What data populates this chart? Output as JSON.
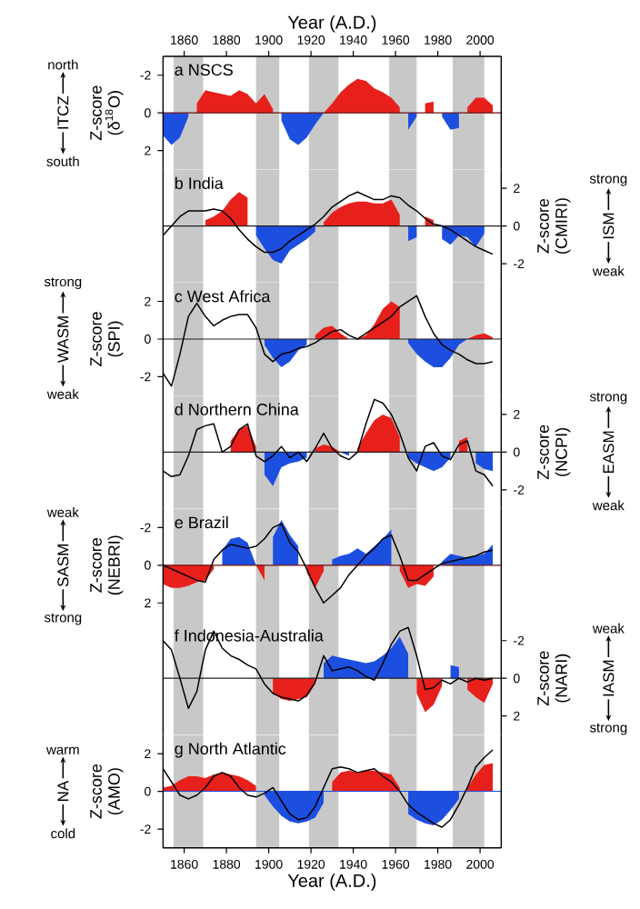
{
  "chart_data": [
    {
      "type": "area",
      "title": "a NSCS",
      "x2label": "Year (A.D.)",
      "ylabel": "Z-score (δ$^{18}$O)",
      "annotations": [
        "north",
        "ITCZ",
        "south"
      ],
      "xlim": [
        1850,
        2010
      ],
      "x2lim": [
        1850,
        2010
      ],
      "x2ticks": [
        1860,
        1880,
        1900,
        1920,
        1940,
        1960,
        1980,
        2000
      ],
      "ylim": [
        3,
        -3
      ],
      "yticks": [
        -2,
        0,
        2
      ],
      "x": [
        1850,
        1854,
        1858,
        1862,
        1866,
        1870,
        1874,
        1878,
        1882,
        1886,
        1890,
        1894,
        1898,
        1902,
        1906,
        1910,
        1914,
        1918,
        1922,
        1926,
        1930,
        1934,
        1938,
        1942,
        1946,
        1950,
        1954,
        1958,
        1962,
        1966,
        1970,
        1974,
        1978,
        1982,
        1986,
        1990,
        1994,
        1998,
        2002,
        2006
      ],
      "bands": [
        {
          "axis": "x",
          "from": 1855,
          "to": 1869,
          "color": "#c8c8c8"
        },
        {
          "axis": "x",
          "from": 1894,
          "to": 1905,
          "color": "#c8c8c8"
        },
        {
          "axis": "x",
          "from": 1919,
          "to": 1933,
          "color": "#c8c8c8"
        },
        {
          "axis": "x",
          "from": 1957,
          "to": 1970,
          "color": "#c8c8c8"
        },
        {
          "axis": "x",
          "from": 1987,
          "to": 2002,
          "color": "#c8c8c8"
        }
      ],
      "ref_lines": [
        {
          "axis": "y",
          "value": 0,
          "color": "#6b1010"
        }
      ],
      "series": [
        {
          "type": "area",
          "color": "#e8201c",
          "values": [
            null,
            null,
            null,
            null,
            -0.5,
            -1.2,
            -1.1,
            -1.0,
            -0.9,
            -1.2,
            -1.0,
            -0.5,
            -1.0,
            -0.2,
            null,
            null,
            null,
            null,
            null,
            0.0,
            -0.5,
            -1.1,
            -1.5,
            -1.8,
            -1.7,
            -1.3,
            -1.1,
            -0.8,
            -0.3,
            null,
            null,
            -0.5,
            -0.6,
            null,
            null,
            null,
            -0.3,
            -0.8,
            -0.8,
            -0.4
          ]
        },
        {
          "type": "area",
          "color": "#1c4fe0",
          "values": [
            1.2,
            1.7,
            1.3,
            0.2,
            null,
            null,
            null,
            null,
            null,
            null,
            null,
            null,
            null,
            null,
            0.4,
            1.4,
            1.7,
            1.3,
            0.6,
            0.0,
            null,
            null,
            null,
            null,
            null,
            null,
            null,
            null,
            null,
            0.9,
            0.2,
            null,
            null,
            0.2,
            0.9,
            0.8,
            null,
            null,
            null,
            null
          ]
        }
      ]
    },
    {
      "type": "area",
      "title": "b India",
      "y2label": "Z-score (CMIRI)",
      "annotations": [
        "strong",
        "ISM",
        "weak"
      ],
      "xlim": [
        1850,
        2010
      ],
      "y2lim": [
        -3,
        3
      ],
      "y2ticks": [
        -2,
        0,
        2
      ],
      "x": [
        1850,
        1854,
        1858,
        1862,
        1866,
        1870,
        1874,
        1878,
        1882,
        1886,
        1890,
        1894,
        1898,
        1902,
        1906,
        1910,
        1914,
        1918,
        1922,
        1926,
        1930,
        1934,
        1938,
        1942,
        1946,
        1950,
        1954,
        1958,
        1962,
        1966,
        1970,
        1974,
        1978,
        1982,
        1986,
        1990,
        1994,
        1998,
        2002,
        2006
      ],
      "bands": [
        {
          "axis": "x",
          "from": 1855,
          "to": 1869,
          "color": "#c8c8c8"
        },
        {
          "axis": "x",
          "from": 1894,
          "to": 1905,
          "color": "#c8c8c8"
        },
        {
          "axis": "x",
          "from": 1919,
          "to": 1933,
          "color": "#c8c8c8"
        },
        {
          "axis": "x",
          "from": 1957,
          "to": 1970,
          "color": "#c8c8c8"
        },
        {
          "axis": "x",
          "from": 1987,
          "to": 2002,
          "color": "#c8c8c8"
        }
      ],
      "ref_lines": [
        {
          "axis": "y2",
          "value": 0,
          "color": "#202020"
        }
      ],
      "series": [
        {
          "type": "area",
          "axis": "y2",
          "color": "#e8201c",
          "values": [
            null,
            null,
            null,
            null,
            null,
            0.3,
            0.5,
            0.8,
            1.4,
            1.8,
            1.5,
            null,
            null,
            null,
            null,
            null,
            null,
            null,
            null,
            0.2,
            0.7,
            1.0,
            1.2,
            1.3,
            1.3,
            1.2,
            1.2,
            1.4,
            0.6,
            null,
            null,
            0.5,
            0.3,
            null,
            null,
            null,
            null,
            null,
            null,
            0.2
          ]
        },
        {
          "type": "area",
          "axis": "y2",
          "color": "#1c4fe0",
          "values": [
            null,
            null,
            null,
            null,
            null,
            null,
            null,
            null,
            null,
            null,
            null,
            -0.5,
            -1.2,
            -1.8,
            -2.0,
            -1.3,
            -1.0,
            -0.7,
            -0.3,
            null,
            null,
            null,
            null,
            null,
            null,
            null,
            null,
            null,
            null,
            -0.8,
            -0.6,
            null,
            null,
            -0.7,
            -1.0,
            -0.5,
            -0.6,
            -1.1,
            -0.4,
            null
          ]
        },
        {
          "type": "line",
          "axis": "y2",
          "color": "#000000",
          "values": [
            -0.5,
            0.0,
            0.5,
            0.8,
            0.8,
            0.8,
            0.9,
            0.8,
            0.4,
            -0.2,
            -0.7,
            -1.1,
            -1.4,
            -1.4,
            -1.2,
            -0.8,
            -0.5,
            -0.2,
            0.1,
            0.5,
            1.0,
            1.3,
            1.6,
            1.8,
            1.6,
            1.4,
            1.4,
            1.6,
            1.5,
            1.1,
            0.8,
            0.4,
            0.1,
            0.0,
            -0.2,
            -0.5,
            -0.8,
            -1.1,
            -1.3,
            -1.5
          ]
        }
      ]
    },
    {
      "type": "area",
      "title": "c West Africa",
      "ylabel": "Z-score (SPI)",
      "annotations": [
        "strong",
        "WASM",
        "weak"
      ],
      "xlim": [
        1850,
        2010
      ],
      "ylim": [
        -3,
        3
      ],
      "yticks": [
        -2,
        0,
        2
      ],
      "x": [
        1850,
        1854,
        1858,
        1862,
        1866,
        1870,
        1874,
        1878,
        1882,
        1886,
        1890,
        1894,
        1898,
        1902,
        1906,
        1910,
        1914,
        1918,
        1922,
        1926,
        1930,
        1934,
        1938,
        1942,
        1946,
        1950,
        1954,
        1958,
        1962,
        1966,
        1970,
        1974,
        1978,
        1982,
        1986,
        1990,
        1994,
        1998,
        2002,
        2006
      ],
      "bands": [
        {
          "axis": "x",
          "from": 1855,
          "to": 1869,
          "color": "#c8c8c8"
        },
        {
          "axis": "x",
          "from": 1894,
          "to": 1905,
          "color": "#c8c8c8"
        },
        {
          "axis": "x",
          "from": 1919,
          "to": 1933,
          "color": "#c8c8c8"
        },
        {
          "axis": "x",
          "from": 1957,
          "to": 1970,
          "color": "#c8c8c8"
        },
        {
          "axis": "x",
          "from": 1987,
          "to": 2002,
          "color": "#c8c8c8"
        }
      ],
      "ref_lines": [
        {
          "axis": "y",
          "value": 0,
          "color": "#202020"
        }
      ],
      "series": [
        {
          "type": "area",
          "color": "#e8201c",
          "values": [
            null,
            null,
            null,
            null,
            null,
            null,
            null,
            null,
            null,
            null,
            null,
            null,
            null,
            null,
            null,
            null,
            null,
            null,
            0.2,
            0.6,
            0.7,
            0.3,
            0.0,
            0.0,
            0.2,
            0.8,
            1.6,
            2.0,
            1.7,
            null,
            null,
            null,
            null,
            null,
            null,
            null,
            0.0,
            0.2,
            0.3,
            0.1
          ]
        },
        {
          "type": "area",
          "color": "#1c4fe0",
          "values": [
            null,
            null,
            null,
            null,
            null,
            null,
            null,
            null,
            null,
            null,
            null,
            null,
            -0.3,
            -1.0,
            -1.5,
            -1.2,
            -0.6,
            -0.3,
            null,
            null,
            null,
            null,
            null,
            null,
            null,
            null,
            null,
            null,
            null,
            -0.2,
            -0.8,
            -1.2,
            -1.5,
            -1.5,
            -1.0,
            -0.3,
            0.0,
            null,
            null,
            null
          ]
        },
        {
          "type": "line",
          "color": "#000000",
          "values": [
            -1.8,
            -2.5,
            -0.8,
            1.2,
            1.9,
            1.2,
            0.7,
            1.0,
            1.2,
            1.3,
            1.3,
            0.6,
            -0.8,
            -1.2,
            -0.8,
            -0.7,
            -0.5,
            -0.4,
            -0.2,
            0.1,
            0.4,
            0.5,
            0.2,
            0.0,
            0.3,
            0.6,
            0.9,
            1.2,
            1.7,
            2.0,
            2.3,
            1.2,
            0.3,
            -0.3,
            -0.6,
            -0.8,
            -1.1,
            -1.3,
            -1.3,
            -1.2
          ]
        }
      ]
    },
    {
      "type": "area",
      "title": "d Northern China",
      "y2label": "Z-score (NCPI)",
      "annotations": [
        "strong",
        "EASM",
        "weak"
      ],
      "xlim": [
        1850,
        2010
      ],
      "y2lim": [
        -3,
        3
      ],
      "y2ticks": [
        -2,
        0,
        2
      ],
      "x": [
        1850,
        1854,
        1858,
        1862,
        1866,
        1870,
        1874,
        1878,
        1882,
        1886,
        1890,
        1894,
        1898,
        1902,
        1906,
        1910,
        1914,
        1918,
        1922,
        1926,
        1930,
        1934,
        1938,
        1942,
        1946,
        1950,
        1954,
        1958,
        1962,
        1966,
        1970,
        1974,
        1978,
        1982,
        1986,
        1990,
        1994,
        1998,
        2002,
        2006
      ],
      "bands": [
        {
          "axis": "x",
          "from": 1855,
          "to": 1869,
          "color": "#c8c8c8"
        },
        {
          "axis": "x",
          "from": 1894,
          "to": 1905,
          "color": "#c8c8c8"
        },
        {
          "axis": "x",
          "from": 1919,
          "to": 1933,
          "color": "#c8c8c8"
        },
        {
          "axis": "x",
          "from": 1957,
          "to": 1970,
          "color": "#c8c8c8"
        },
        {
          "axis": "x",
          "from": 1987,
          "to": 2002,
          "color": "#c8c8c8"
        }
      ],
      "ref_lines": [
        {
          "axis": "y2",
          "value": 0,
          "color": "#202020"
        }
      ],
      "series": [
        {
          "type": "area",
          "axis": "y2",
          "color": "#e8201c",
          "values": [
            null,
            null,
            null,
            null,
            null,
            null,
            null,
            null,
            0.6,
            1.2,
            1.4,
            0.3,
            null,
            null,
            null,
            null,
            null,
            null,
            0.2,
            0.4,
            0.3,
            0.0,
            null,
            0.2,
            1.0,
            1.7,
            2.0,
            1.8,
            0.8,
            null,
            null,
            null,
            null,
            null,
            null,
            0.6,
            0.8,
            null,
            null,
            null
          ]
        },
        {
          "type": "area",
          "axis": "y2",
          "color": "#1c4fe0",
          "values": [
            null,
            null,
            null,
            null,
            null,
            null,
            null,
            null,
            null,
            null,
            null,
            null,
            -1.2,
            -1.8,
            -0.8,
            -0.6,
            -0.5,
            -0.3,
            null,
            null,
            null,
            0.0,
            -0.2,
            null,
            null,
            null,
            null,
            null,
            null,
            -0.3,
            -0.6,
            -0.8,
            -1.0,
            -0.8,
            -0.3,
            null,
            null,
            -0.6,
            -0.9,
            -1.0
          ]
        },
        {
          "type": "line",
          "axis": "y2",
          "color": "#000000",
          "values": [
            -1.0,
            -1.3,
            -1.2,
            -0.2,
            1.2,
            1.4,
            1.5,
            0.0,
            0.3,
            1.2,
            1.5,
            -0.2,
            -0.5,
            -0.2,
            0.3,
            -0.3,
            0.0,
            -0.5,
            0.2,
            1.0,
            0.2,
            -0.2,
            -0.4,
            0.0,
            1.5,
            2.8,
            2.6,
            2.0,
            1.0,
            -0.3,
            -1.0,
            0.3,
            0.5,
            -0.2,
            -0.4,
            0.4,
            0.6,
            -1.0,
            -1.2,
            -1.8
          ]
        }
      ]
    },
    {
      "type": "area",
      "title": "e Brazil",
      "ylabel": "Z-score (NEBRI)",
      "annotations": [
        "weak",
        "SASM",
        "strong"
      ],
      "xlim": [
        1850,
        2010
      ],
      "ylim": [
        3,
        -3
      ],
      "yticks": [
        -2,
        0,
        2
      ],
      "x": [
        1850,
        1854,
        1858,
        1862,
        1866,
        1870,
        1874,
        1878,
        1882,
        1886,
        1890,
        1894,
        1898,
        1902,
        1906,
        1910,
        1914,
        1918,
        1922,
        1926,
        1930,
        1934,
        1938,
        1942,
        1946,
        1950,
        1954,
        1958,
        1962,
        1966,
        1970,
        1974,
        1978,
        1982,
        1986,
        1990,
        1994,
        1998,
        2002,
        2006
      ],
      "bands": [
        {
          "axis": "x",
          "from": 1855,
          "to": 1869,
          "color": "#c8c8c8"
        },
        {
          "axis": "x",
          "from": 1894,
          "to": 1905,
          "color": "#c8c8c8"
        },
        {
          "axis": "x",
          "from": 1919,
          "to": 1933,
          "color": "#c8c8c8"
        },
        {
          "axis": "x",
          "from": 1957,
          "to": 1970,
          "color": "#c8c8c8"
        },
        {
          "axis": "x",
          "from": 1987,
          "to": 2002,
          "color": "#c8c8c8"
        }
      ],
      "ref_lines": [
        {
          "axis": "y",
          "value": 0,
          "color": "#6b1010"
        }
      ],
      "series": [
        {
          "type": "area",
          "color": "#e8201c",
          "values": [
            1.0,
            1.2,
            1.2,
            1.1,
            0.9,
            0.8,
            0.2,
            null,
            null,
            null,
            null,
            0.0,
            0.8,
            null,
            null,
            null,
            null,
            0.4,
            1.2,
            0.3,
            null,
            null,
            null,
            null,
            null,
            null,
            null,
            null,
            0.3,
            1.2,
            1.0,
            1.1,
            0.6,
            null,
            null,
            null,
            null,
            null,
            null,
            null
          ]
        },
        {
          "type": "area",
          "color": "#1c4fe0",
          "values": [
            null,
            null,
            null,
            null,
            null,
            null,
            null,
            -0.8,
            -1.4,
            -1.5,
            -1.2,
            0.0,
            null,
            -1.5,
            -2.4,
            -1.6,
            -1.0,
            null,
            null,
            null,
            -0.3,
            -0.5,
            -0.6,
            -0.9,
            -0.6,
            -1.0,
            -1.4,
            -1.9,
            null,
            null,
            null,
            null,
            null,
            -0.2,
            -0.6,
            -0.5,
            -0.4,
            -0.5,
            -0.6,
            -1.1
          ]
        },
        {
          "type": "line",
          "color": "#000000",
          "values": [
            0.0,
            0.2,
            0.4,
            0.6,
            0.8,
            0.9,
            -0.3,
            -0.8,
            -1.1,
            -1.0,
            -0.9,
            -1.0,
            -1.4,
            -2.0,
            -2.2,
            -1.2,
            -0.7,
            0.2,
            1.2,
            2.0,
            1.6,
            1.2,
            0.5,
            0.0,
            -0.5,
            -0.9,
            -1.4,
            -1.6,
            -0.5,
            0.8,
            0.8,
            0.5,
            0.2,
            -0.1,
            -0.2,
            -0.3,
            -0.4,
            -0.5,
            -0.7,
            -0.8
          ]
        }
      ]
    },
    {
      "type": "area",
      "title": "f Indonesia-Australia",
      "y2label": "Z-score (NARI)",
      "annotations": [
        "weak",
        "IASM",
        "strong"
      ],
      "xlim": [
        1850,
        2010
      ],
      "y2lim": [
        3,
        -3
      ],
      "y2ticks": [
        -2,
        0,
        2
      ],
      "x": [
        1850,
        1854,
        1858,
        1862,
        1866,
        1870,
        1874,
        1878,
        1882,
        1886,
        1890,
        1894,
        1898,
        1902,
        1906,
        1910,
        1914,
        1918,
        1922,
        1926,
        1930,
        1934,
        1938,
        1942,
        1946,
        1950,
        1954,
        1958,
        1962,
        1966,
        1970,
        1974,
        1978,
        1982,
        1986,
        1990,
        1994,
        1998,
        2002,
        2006
      ],
      "bands": [
        {
          "axis": "x",
          "from": 1855,
          "to": 1869,
          "color": "#c8c8c8"
        },
        {
          "axis": "x",
          "from": 1894,
          "to": 1905,
          "color": "#c8c8c8"
        },
        {
          "axis": "x",
          "from": 1919,
          "to": 1933,
          "color": "#c8c8c8"
        },
        {
          "axis": "x",
          "from": 1957,
          "to": 1970,
          "color": "#c8c8c8"
        },
        {
          "axis": "x",
          "from": 1987,
          "to": 2002,
          "color": "#c8c8c8"
        }
      ],
      "ref_lines": [
        {
          "axis": "y2",
          "value": 0,
          "color": "#202020"
        }
      ],
      "series": [
        {
          "type": "area",
          "axis": "y2",
          "color": "#e8201c",
          "values": [
            null,
            null,
            null,
            null,
            null,
            null,
            null,
            null,
            null,
            null,
            null,
            null,
            null,
            0.8,
            1.1,
            1.2,
            1.1,
            1.0,
            0.3,
            null,
            null,
            null,
            null,
            null,
            null,
            null,
            null,
            null,
            null,
            null,
            0.8,
            1.8,
            1.4,
            0.4,
            null,
            null,
            0.6,
            1.0,
            1.3,
            0.3
          ]
        },
        {
          "type": "area",
          "axis": "y2",
          "color": "#1c4fe0",
          "values": [
            null,
            null,
            null,
            null,
            null,
            null,
            null,
            null,
            null,
            null,
            null,
            null,
            null,
            null,
            null,
            null,
            null,
            null,
            null,
            -0.8,
            -1.2,
            -1.1,
            -1.0,
            -0.9,
            -0.8,
            -0.9,
            -1.2,
            -1.6,
            -2.2,
            -1.3,
            null,
            null,
            null,
            null,
            -0.7,
            -0.6,
            null,
            null,
            null,
            null
          ]
        },
        {
          "type": "line",
          "axis": "y2",
          "color": "#000000",
          "values": [
            -2.0,
            -1.5,
            0.0,
            1.6,
            0.7,
            -1.5,
            -2.5,
            -1.6,
            -1.2,
            -1.0,
            -0.7,
            -0.5,
            0.3,
            0.8,
            1.0,
            1.1,
            1.2,
            0.9,
            0.2,
            -1.2,
            -0.4,
            -0.5,
            -0.6,
            -0.4,
            -0.1,
            0.1,
            -0.8,
            -1.8,
            -2.5,
            -2.7,
            -1.2,
            0.6,
            0.5,
            0.1,
            0.3,
            0.0,
            0.2,
            0.0,
            0.1,
            0.0
          ]
        }
      ]
    },
    {
      "type": "area",
      "title": "g North Atlantic",
      "xlabel": "Year (A.D.)",
      "ylabel": "Z-score (AMO)",
      "annotations": [
        "warm",
        "NA",
        "cold"
      ],
      "xlim": [
        1850,
        2010
      ],
      "xticks": [
        1860,
        1880,
        1900,
        1920,
        1940,
        1960,
        1980,
        2000
      ],
      "ylim": [
        -3,
        3
      ],
      "yticks": [
        -2,
        0,
        2
      ],
      "x": [
        1850,
        1854,
        1858,
        1862,
        1866,
        1870,
        1874,
        1878,
        1882,
        1886,
        1890,
        1894,
        1898,
        1902,
        1906,
        1910,
        1914,
        1918,
        1922,
        1926,
        1930,
        1934,
        1938,
        1942,
        1946,
        1950,
        1954,
        1958,
        1962,
        1966,
        1970,
        1974,
        1978,
        1982,
        1986,
        1990,
        1994,
        1998,
        2002,
        2006
      ],
      "bands": [
        {
          "axis": "x",
          "from": 1855,
          "to": 1869,
          "color": "#c8c8c8"
        },
        {
          "axis": "x",
          "from": 1894,
          "to": 1905,
          "color": "#c8c8c8"
        },
        {
          "axis": "x",
          "from": 1919,
          "to": 1933,
          "color": "#c8c8c8"
        },
        {
          "axis": "x",
          "from": 1957,
          "to": 1970,
          "color": "#c8c8c8"
        },
        {
          "axis": "x",
          "from": 1987,
          "to": 2002,
          "color": "#c8c8c8"
        }
      ],
      "ref_lines": [
        {
          "axis": "y",
          "value": 0,
          "color": "#1c4fe0"
        }
      ],
      "series": [
        {
          "type": "area",
          "color": "#e8201c",
          "values": [
            0.2,
            0.3,
            0.6,
            0.8,
            0.8,
            0.7,
            0.9,
            1.0,
            0.9,
            0.8,
            0.6,
            0.3,
            null,
            null,
            null,
            null,
            null,
            null,
            null,
            null,
            0.5,
            1.0,
            1.1,
            1.0,
            1.1,
            1.1,
            1.0,
            0.9,
            0.2,
            null,
            null,
            null,
            null,
            null,
            null,
            null,
            0.2,
            0.9,
            1.4,
            1.5
          ]
        },
        {
          "type": "area",
          "color": "#1c4fe0",
          "values": [
            null,
            null,
            null,
            null,
            null,
            null,
            null,
            null,
            null,
            null,
            null,
            null,
            -0.2,
            -0.8,
            -1.3,
            -1.6,
            -1.7,
            -1.6,
            -1.4,
            -0.6,
            null,
            null,
            null,
            null,
            null,
            null,
            null,
            null,
            null,
            -1.2,
            -1.5,
            -1.7,
            -1.8,
            -1.5,
            -1.0,
            -0.4,
            null,
            null,
            null,
            null
          ]
        },
        {
          "type": "line",
          "color": "#000000",
          "values": [
            1.2,
            0.5,
            -0.2,
            -0.4,
            -0.2,
            0.2,
            0.8,
            1.0,
            0.8,
            0.2,
            -0.2,
            -0.3,
            -0.1,
            0.2,
            -0.5,
            -1.2,
            -1.5,
            -1.4,
            -0.8,
            0.2,
            1.2,
            1.3,
            1.2,
            1.0,
            1.1,
            1.2,
            0.8,
            0.5,
            0.0,
            -0.7,
            -1.1,
            -1.4,
            -1.7,
            -1.9,
            -1.5,
            -0.7,
            0.2,
            1.3,
            1.8,
            2.2
          ]
        }
      ]
    }
  ]
}
